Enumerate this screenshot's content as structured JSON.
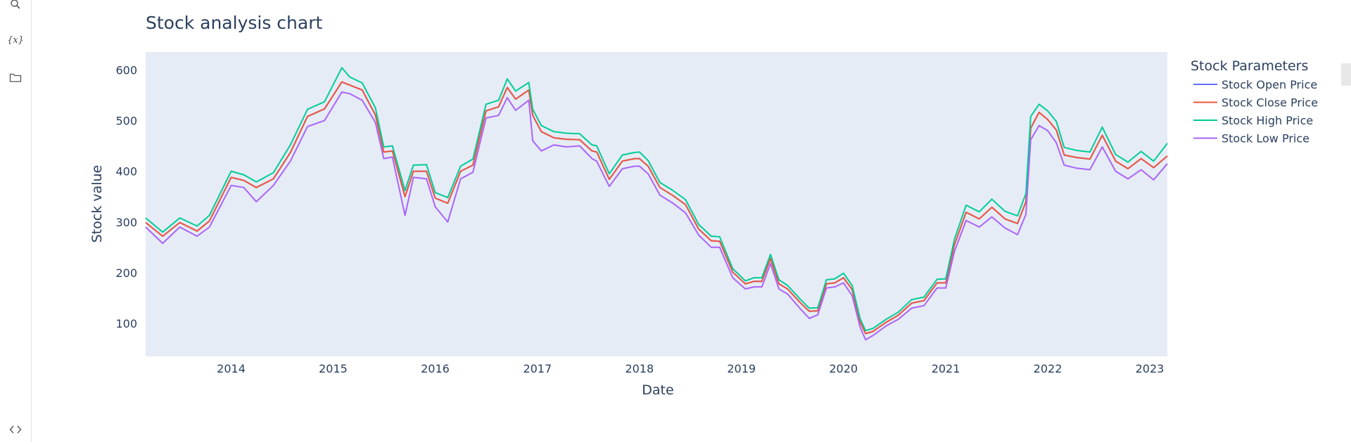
{
  "sidebar": {
    "icons": [
      "search-icon",
      "variables-icon",
      "folder-icon",
      "code-icon"
    ],
    "variables_label": "{x}"
  },
  "colors": {
    "plot_bg": "#e5ecf6",
    "open": "#636efa",
    "close": "#ef553b",
    "high": "#00cc96",
    "low": "#ab63fa"
  },
  "chart_data": {
    "type": "line",
    "title": "Stock analysis chart",
    "xlabel": "Date",
    "ylabel": "Stock value",
    "legend_title": "Stock Parameters",
    "legend_position": "right",
    "grid": false,
    "xlim": [
      "2013-03-01",
      "2023-03-05"
    ],
    "ylim": [
      35,
      635
    ],
    "x_ticks": [
      "2014",
      "2015",
      "2016",
      "2017",
      "2018",
      "2019",
      "2020",
      "2021",
      "2022",
      "2023"
    ],
    "y_ticks": [
      "100",
      "200",
      "300",
      "400",
      "500",
      "600"
    ],
    "x": [
      "2013-03-01",
      "2013-05-01",
      "2013-07-01",
      "2013-09-01",
      "2013-10-15",
      "2014-01-01",
      "2014-02-15",
      "2014-04-01",
      "2014-06-01",
      "2014-08-01",
      "2014-10-01",
      "2014-12-01",
      "2015-02-01",
      "2015-03-01",
      "2015-04-15",
      "2015-06-01",
      "2015-07-01",
      "2015-08-01",
      "2015-09-15",
      "2015-10-15",
      "2015-12-01",
      "2016-01-01",
      "2016-02-15",
      "2016-04-01",
      "2016-05-15",
      "2016-07-01",
      "2016-08-15",
      "2016-09-15",
      "2016-10-15",
      "2016-12-01",
      "2016-12-15",
      "2017-01-15",
      "2017-03-01",
      "2017-04-15",
      "2017-06-01",
      "2017-07-15",
      "2017-08-01",
      "2017-09-15",
      "2017-11-01",
      "2017-12-15",
      "2018-01-01",
      "2018-02-01",
      "2018-03-15",
      "2018-05-01",
      "2018-06-15",
      "2018-08-01",
      "2018-09-15",
      "2018-10-15",
      "2018-12-01",
      "2019-01-15",
      "2019-02-15",
      "2019-03-15",
      "2019-04-15",
      "2019-05-15",
      "2019-06-15",
      "2019-08-01",
      "2019-09-01",
      "2019-10-01",
      "2019-11-01",
      "2019-12-01",
      "2020-01-01",
      "2020-02-01",
      "2020-03-01",
      "2020-03-20",
      "2020-04-15",
      "2020-06-01",
      "2020-07-15",
      "2020-09-01",
      "2020-10-15",
      "2020-12-01",
      "2021-01-01",
      "2021-02-01",
      "2021-03-15",
      "2021-05-01",
      "2021-06-15",
      "2021-08-01",
      "2021-09-15",
      "2021-10-15",
      "2021-11-01",
      "2021-12-01",
      "2022-01-01",
      "2022-02-01",
      "2022-03-01",
      "2022-04-15",
      "2022-06-01",
      "2022-07-15",
      "2022-09-01",
      "2022-10-15",
      "2022-12-01",
      "2023-01-15",
      "2023-03-05"
    ],
    "series": [
      {
        "name": "Stock Open Price",
        "values": [
          299,
          272,
          299,
          282,
          302,
          388,
          382,
          368,
          385,
          437,
          508,
          523,
          576,
          570,
          560,
          511,
          438,
          440,
          350,
          400,
          400,
          347,
          337,
          400,
          412,
          519,
          527,
          565,
          542,
          560,
          510,
          478,
          466,
          463,
          462,
          440,
          438,
          384,
          420,
          425,
          425,
          410,
          368,
          352,
          334,
          286,
          263,
          262,
          201,
          178,
          183,
          183,
          228,
          178,
          168,
          140,
          124,
          125,
          178,
          180,
          190,
          167,
          102,
          80,
          84,
          102,
          116,
          140,
          145,
          180,
          180,
          255,
          319,
          306,
          329,
          306,
          297,
          340,
          485,
          516,
          502,
          481,
          432,
          427,
          424,
          471,
          420,
          405,
          425,
          407,
          430
        ]
      },
      {
        "name": "Stock Close Price",
        "values": [
          299,
          272,
          299,
          282,
          302,
          388,
          382,
          368,
          385,
          437,
          508,
          523,
          576,
          570,
          560,
          511,
          438,
          440,
          350,
          400,
          400,
          347,
          337,
          400,
          412,
          519,
          527,
          565,
          542,
          560,
          510,
          478,
          466,
          463,
          462,
          440,
          438,
          384,
          420,
          425,
          425,
          410,
          368,
          352,
          334,
          286,
          263,
          262,
          201,
          178,
          183,
          183,
          228,
          178,
          168,
          140,
          124,
          125,
          178,
          180,
          190,
          167,
          102,
          80,
          84,
          102,
          116,
          140,
          145,
          180,
          180,
          255,
          319,
          306,
          329,
          306,
          297,
          340,
          485,
          516,
          502,
          481,
          432,
          427,
          424,
          471,
          420,
          405,
          425,
          407,
          430
        ]
      },
      {
        "name": "Stock High Price",
        "values": [
          308,
          280,
          308,
          292,
          313,
          400,
          393,
          379,
          397,
          452,
          522,
          537,
          604,
          586,
          574,
          525,
          448,
          450,
          362,
          412,
          413,
          358,
          348,
          410,
          424,
          532,
          540,
          582,
          558,
          575,
          522,
          490,
          478,
          475,
          474,
          452,
          450,
          395,
          432,
          437,
          438,
          421,
          378,
          362,
          344,
          295,
          272,
          271,
          208,
          184,
          190,
          190,
          236,
          186,
          175,
          147,
          130,
          131,
          186,
          188,
          199,
          175,
          109,
          86,
          90,
          108,
          122,
          147,
          152,
          187,
          188,
          266,
          333,
          320,
          345,
          321,
          312,
          356,
          508,
          532,
          519,
          498,
          447,
          441,
          438,
          487,
          433,
          418,
          439,
          420,
          455
        ]
      },
      {
        "name": "Stock Low Price",
        "values": [
          290,
          258,
          290,
          272,
          290,
          372,
          368,
          340,
          372,
          420,
          488,
          500,
          556,
          553,
          540,
          496,
          425,
          428,
          313,
          388,
          385,
          330,
          300,
          385,
          398,
          505,
          510,
          545,
          520,
          540,
          460,
          440,
          452,
          448,
          450,
          425,
          420,
          370,
          405,
          410,
          410,
          395,
          353,
          337,
          318,
          274,
          250,
          250,
          190,
          168,
          172,
          172,
          218,
          168,
          158,
          128,
          110,
          117,
          170,
          172,
          180,
          155,
          92,
          68,
          76,
          95,
          108,
          130,
          135,
          170,
          170,
          242,
          303,
          290,
          310,
          288,
          275,
          315,
          462,
          490,
          480,
          456,
          412,
          406,
          403,
          448,
          400,
          385,
          403,
          383,
          415
        ]
      }
    ]
  }
}
